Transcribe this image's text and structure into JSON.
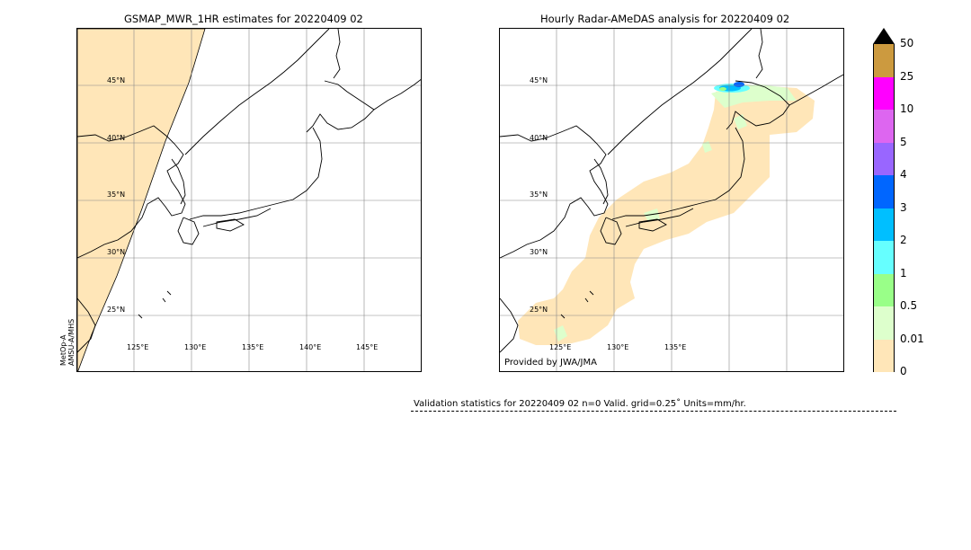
{
  "left_panel": {
    "title": "GSMAP_MWR_1HR estimates for 20220409 02",
    "satellite_label_1": "MetOp-A",
    "satellite_label_2": "AMSU-A/MHS",
    "lat_labels": [
      "45°N",
      "40°N",
      "35°N",
      "30°N",
      "25°N"
    ],
    "lon_labels": [
      "125°E",
      "130°E",
      "135°E",
      "140°E",
      "145°E"
    ]
  },
  "right_panel": {
    "title": "Hourly Radar-AMeDAS analysis for 20220409 02",
    "lat_labels": [
      "45°N",
      "40°N",
      "35°N",
      "30°N",
      "25°N"
    ],
    "lon_labels": [
      "125°E",
      "130°E",
      "135°E"
    ],
    "credit": "Provided by JWA/JMA"
  },
  "colorbar": {
    "labels": [
      "50",
      "25",
      "10",
      "5",
      "4",
      "3",
      "2",
      "1",
      "0.5",
      "0.01",
      "0"
    ],
    "colors": [
      "#cc9a3f",
      "#ff00ff",
      "#dd66f0",
      "#9966ff",
      "#0066ff",
      "#00bfff",
      "#66ffff",
      "#99ff88",
      "#ddffcc",
      "#ffe6b8"
    ],
    "extend_color": "#000000"
  },
  "validation": {
    "text": "Validation statistics for 20220409 02  n=0 Valid. grid=0.25˚ Units=mm/hr."
  },
  "chart_data": [
    {
      "type": "heatmap",
      "title": "GSMAP_MWR_1HR estimates for 20220409 02",
      "region": "Japan",
      "lon_ticks": [
        125,
        130,
        135,
        140,
        145
      ],
      "lat_ticks": [
        25,
        30,
        35,
        40,
        45
      ],
      "xlim": [
        120,
        150
      ],
      "ylim": [
        20,
        50
      ],
      "grid": true,
      "units": "mm/hr",
      "observed_swath": "western strip over Yellow Sea / East China Sea",
      "max_category": "0.01-0.5",
      "swath_color": "#ffe6b8"
    },
    {
      "type": "heatmap",
      "title": "Hourly Radar-AMeDAS analysis for 20220409 02",
      "region": "Japan",
      "lon_ticks": [
        125,
        130,
        135
      ],
      "lat_ticks": [
        25,
        30,
        35,
        40,
        45
      ],
      "xlim": [
        120,
        150
      ],
      "ylim": [
        20,
        50
      ],
      "grid": true,
      "units": "mm/hr",
      "coverage": "radar area around Japanese archipelago",
      "max_category": "3-4 (northern Hokkaido)",
      "coverage_color": "#ffe6b8"
    }
  ]
}
